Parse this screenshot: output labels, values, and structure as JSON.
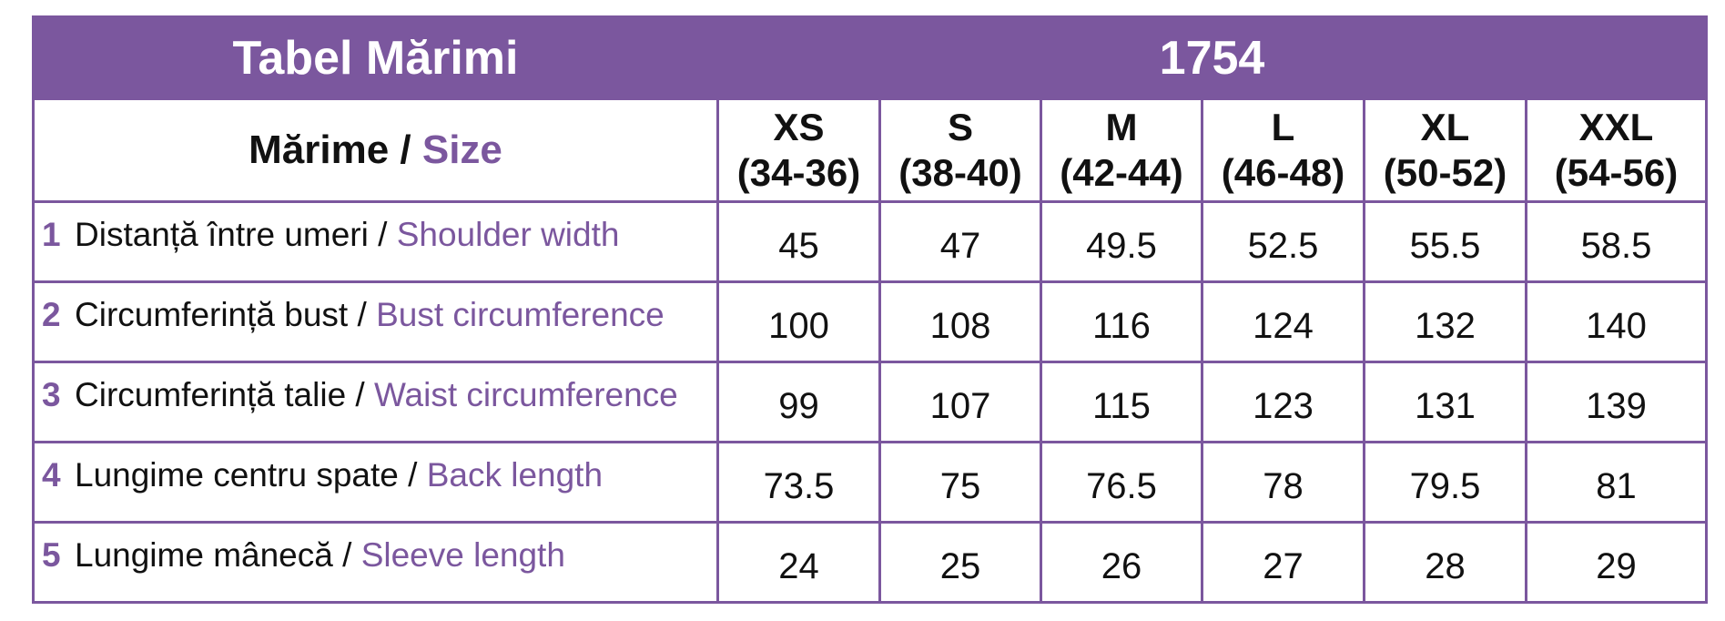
{
  "title": "Tabel Mărimi",
  "model": "1754",
  "header": {
    "label_ro": "Mărime",
    "separator": " / ",
    "label_en": "Size",
    "sizes": [
      {
        "code": "XS",
        "range": "(34-36)"
      },
      {
        "code": "S",
        "range": "(38-40)"
      },
      {
        "code": "M",
        "range": "(42-44)"
      },
      {
        "code": "L",
        "range": "(46-48)"
      },
      {
        "code": "XL",
        "range": "(50-52)"
      },
      {
        "code": "XXL",
        "range": "(54-56)"
      }
    ]
  },
  "rows": [
    {
      "num": "1",
      "label_ro": "Distanță între umeri",
      "label_en": "Shoulder width",
      "values": [
        "45",
        "47",
        "49.5",
        "52.5",
        "55.5",
        "58.5"
      ]
    },
    {
      "num": "2",
      "label_ro": "Circumferință bust",
      "label_en": "Bust circumference",
      "values": [
        "100",
        "108",
        "116",
        "124",
        "132",
        "140"
      ]
    },
    {
      "num": "3",
      "label_ro": "Circumferință talie",
      "label_en": "Waist circumference",
      "values": [
        "99",
        "107",
        "115",
        "123",
        "131",
        "139"
      ]
    },
    {
      "num": "4",
      "label_ro": "Lungime centru spate",
      "label_en": "Back length",
      "values": [
        "73.5",
        "75",
        "76.5",
        "78",
        "79.5",
        "81"
      ]
    },
    {
      "num": "5",
      "label_ro": "Lungime mânecă",
      "label_en": "Sleeve length",
      "values": [
        "24",
        "25",
        "26",
        "27",
        "28",
        "29"
      ]
    }
  ],
  "colors": {
    "accent": "#7b579e",
    "text": "#111111",
    "background": "#ffffff"
  }
}
